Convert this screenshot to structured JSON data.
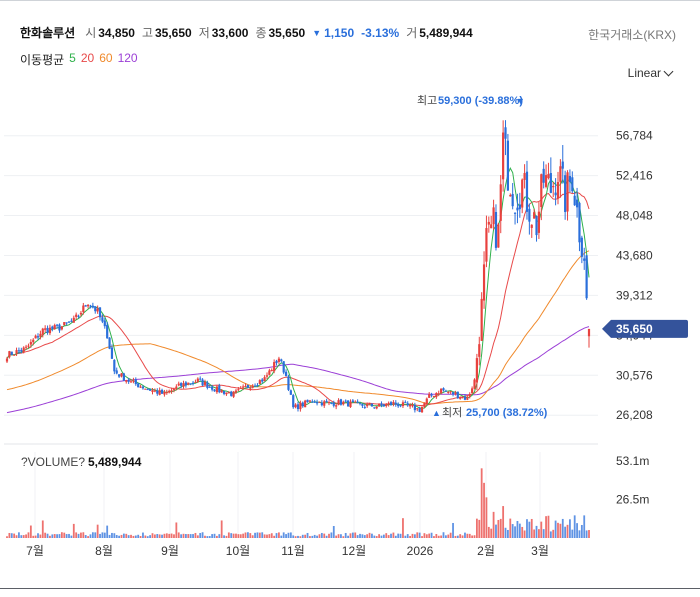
{
  "header": {
    "name": "한화솔루션",
    "open_label": "시",
    "open": "34,850",
    "high_label": "고",
    "high": "35,650",
    "low_label": "저",
    "low": "33,600",
    "close_label": "종",
    "close": "35,650",
    "change": "1,150",
    "change_pct": "-3.13%",
    "volume_label": "거",
    "volume": "5,489,944",
    "change_color": "#2a6fdb"
  },
  "exchange": "한국거래소(KRX)",
  "scale_button": "Linear",
  "ma": {
    "label": "이동평균",
    "items": [
      {
        "period": "5",
        "color": "#2fb14b"
      },
      {
        "period": "20",
        "color": "#e84a4a"
      },
      {
        "period": "60",
        "color": "#f08a2c"
      },
      {
        "period": "120",
        "color": "#9b3fd6"
      }
    ]
  },
  "chart_data": [
    {
      "type": "candlestick",
      "y_ticks": [
        "56,784",
        "52,416",
        "48,048",
        "43,680",
        "39,312",
        "34,944",
        "30,576",
        "26,208"
      ],
      "x_ticks": [
        "7월",
        "8월",
        "9월",
        "10월",
        "11월",
        "12월",
        "2026",
        "2월",
        "3월"
      ],
      "ylim": [
        23500,
        62000
      ],
      "current_price": "35,650",
      "max_label": "최고",
      "max_value": "59,300 (-39.88%)",
      "min_label": "최저",
      "min_value": "25,700 (38.72%)",
      "up_color": "#e8413e",
      "down_color": "#2a6fdb",
      "close_anchors": [
        [
          0,
          32800
        ],
        [
          8,
          33500
        ],
        [
          15,
          35500
        ],
        [
          22,
          35800
        ],
        [
          28,
          36500
        ],
        [
          34,
          38600
        ],
        [
          38,
          37500
        ],
        [
          42,
          35000
        ],
        [
          45,
          31000
        ],
        [
          52,
          29800
        ],
        [
          60,
          29000
        ],
        [
          66,
          28500
        ],
        [
          73,
          29500
        ],
        [
          80,
          30000
        ],
        [
          88,
          29000
        ],
        [
          95,
          28500
        ],
        [
          102,
          29500
        ],
        [
          108,
          30200
        ],
        [
          114,
          32500
        ],
        [
          117,
          30500
        ],
        [
          120,
          27000
        ],
        [
          128,
          27800
        ],
        [
          134,
          27500
        ],
        [
          140,
          27600
        ],
        [
          148,
          27300
        ],
        [
          156,
          27200
        ],
        [
          162,
          27500
        ],
        [
          168,
          27200
        ],
        [
          173,
          26800
        ],
        [
          177,
          28200
        ],
        [
          182,
          29000
        ],
        [
          188,
          28500
        ],
        [
          193,
          28000
        ],
        [
          196,
          30000
        ],
        [
          199,
          38000
        ],
        [
          201,
          45000
        ],
        [
          204,
          47000
        ],
        [
          206,
          46000
        ],
        [
          208,
          56000
        ],
        [
          210,
          53000
        ],
        [
          213,
          50000
        ],
        [
          216,
          51500
        ],
        [
          219,
          49000
        ],
        [
          222,
          47000
        ],
        [
          225,
          52000
        ],
        [
          228,
          51000
        ],
        [
          231,
          53000
        ],
        [
          234,
          50000
        ],
        [
          237,
          52500
        ],
        [
          240,
          46500
        ],
        [
          242,
          44000
        ],
        [
          243,
          38500
        ],
        [
          244,
          35650
        ]
      ],
      "ma_last": {
        "5": 38800,
        "20": 46500,
        "60": 39200,
        "120": 35200
      }
    },
    {
      "type": "bar",
      "title": "?VOLUME?",
      "last_value": "5,489,944",
      "y_ticks": [
        "53.1m",
        "26.5m"
      ],
      "ylim": [
        0,
        62
      ]
    }
  ]
}
